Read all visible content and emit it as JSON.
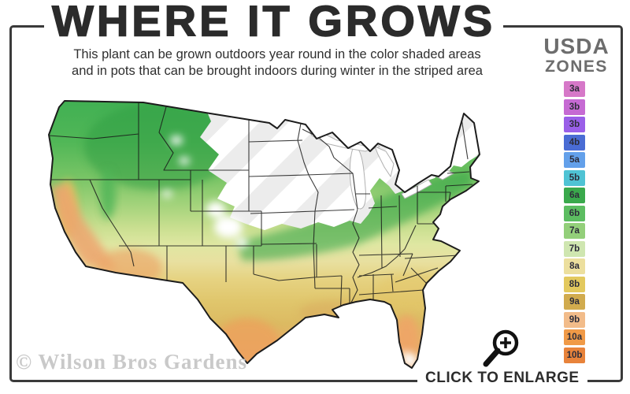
{
  "header": {
    "title": "WHERE IT GROWS",
    "subtitle_line1": "This plant can be grown outdoors year round in the color shaded areas",
    "subtitle_line2": "and in pots that can be brought indoors during winter in the striped area"
  },
  "legend": {
    "title_line1": "USDA",
    "title_line2": "ZONES",
    "zones": [
      {
        "label": "3a",
        "color": "#d678c8"
      },
      {
        "label": "3b",
        "color": "#c66ad3"
      },
      {
        "label": "3b",
        "color": "#9a5fe8"
      },
      {
        "label": "4b",
        "color": "#4a6cd4"
      },
      {
        "label": "5a",
        "color": "#63a0ea"
      },
      {
        "label": "5b",
        "color": "#4fc3d4"
      },
      {
        "label": "6a",
        "color": "#3aa94c"
      },
      {
        "label": "6b",
        "color": "#5cbd61"
      },
      {
        "label": "7a",
        "color": "#93cf7a"
      },
      {
        "label": "7b",
        "color": "#cfe6b0"
      },
      {
        "label": "8a",
        "color": "#ecdf9e"
      },
      {
        "label": "8b",
        "color": "#e3c95e"
      },
      {
        "label": "9a",
        "color": "#d1ab4e"
      },
      {
        "label": "9b",
        "color": "#f2bc8a"
      },
      {
        "label": "10a",
        "color": "#f09a47"
      },
      {
        "label": "10b",
        "color": "#e8833b"
      }
    ]
  },
  "map": {
    "palette": {
      "zone_green": "#3aa94c",
      "zone_light_green": "#93cf7a",
      "zone_gold": "#e3c95e",
      "zone_orange": "#f09a47",
      "zone_peach": "#f2bc8a",
      "stripe_gray": "#ececec",
      "outline": "#1c1c1c"
    }
  },
  "footer": {
    "watermark": "© Wilson Bros Gardens",
    "enlarge_label": "CLICK TO ENLARGE"
  }
}
